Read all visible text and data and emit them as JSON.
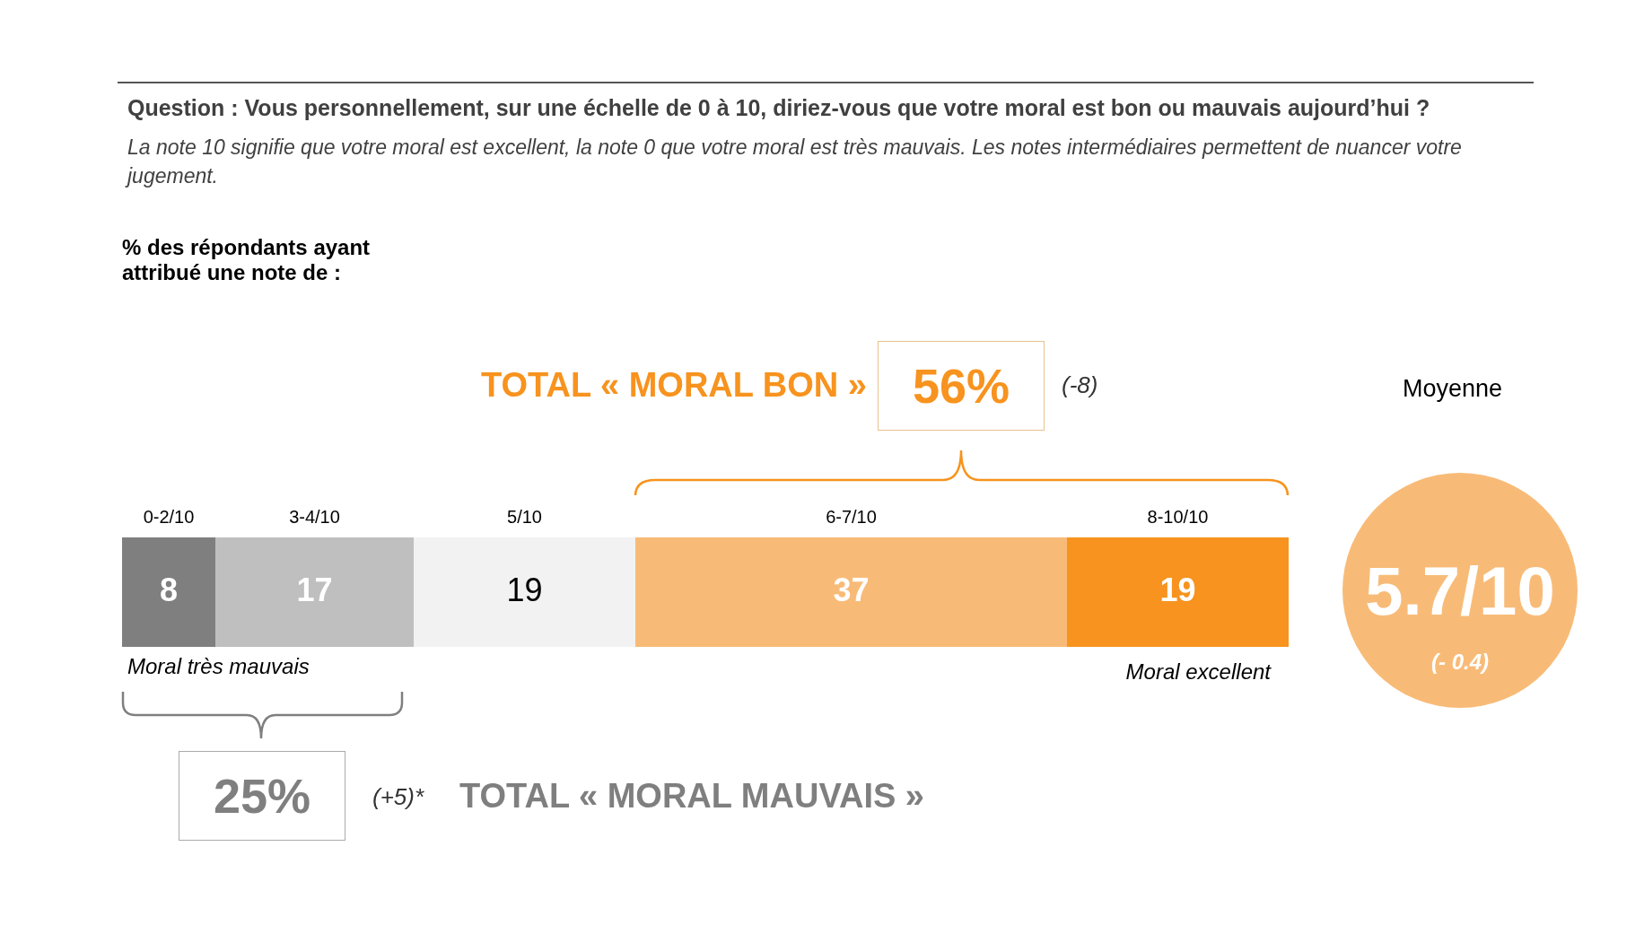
{
  "chart_data": {
    "type": "bar",
    "orientation": "horizontal",
    "stacked": true,
    "data_labels": true,
    "legend": false,
    "title": "Question : Vous personnellement, sur une échelle de 0 à 10, diriez-vous que votre moral est bon ou mauvais aujourd’hui ?",
    "subtitle": "La note 10 signifie que votre moral est excellent, la note 0 que votre moral est très mauvais. Les notes intermédiaires permettent de nuancer votre jugement.",
    "categories": [
      null
    ],
    "series": [
      {
        "name": "0-2/10",
        "color": "#7f7f7f",
        "values": [
          8
        ]
      },
      {
        "name": "3-4/10",
        "color": "#bfbfbf",
        "values": [
          17
        ]
      },
      {
        "name": "5/10",
        "color": "#f2f2f2",
        "values": [
          19
        ]
      },
      {
        "name": "6-7/10",
        "color": "#f8bb77",
        "values": [
          37
        ]
      },
      {
        "name": "8-10/10",
        "color": "#f7931e",
        "values": [
          19
        ]
      }
    ],
    "annotations": [
      "% des répondants ayant attribué une note de :",
      "TOTAL « MORAL  BON »",
      "56%",
      "(-8)",
      "Moyenne",
      "5.7/10",
      "(- 0.4)",
      "Moral très mauvais",
      "Moral excellent",
      "25%",
      "(+5)*",
      "TOTAL « MORAL MAUVAIS »"
    ]
  }
}
